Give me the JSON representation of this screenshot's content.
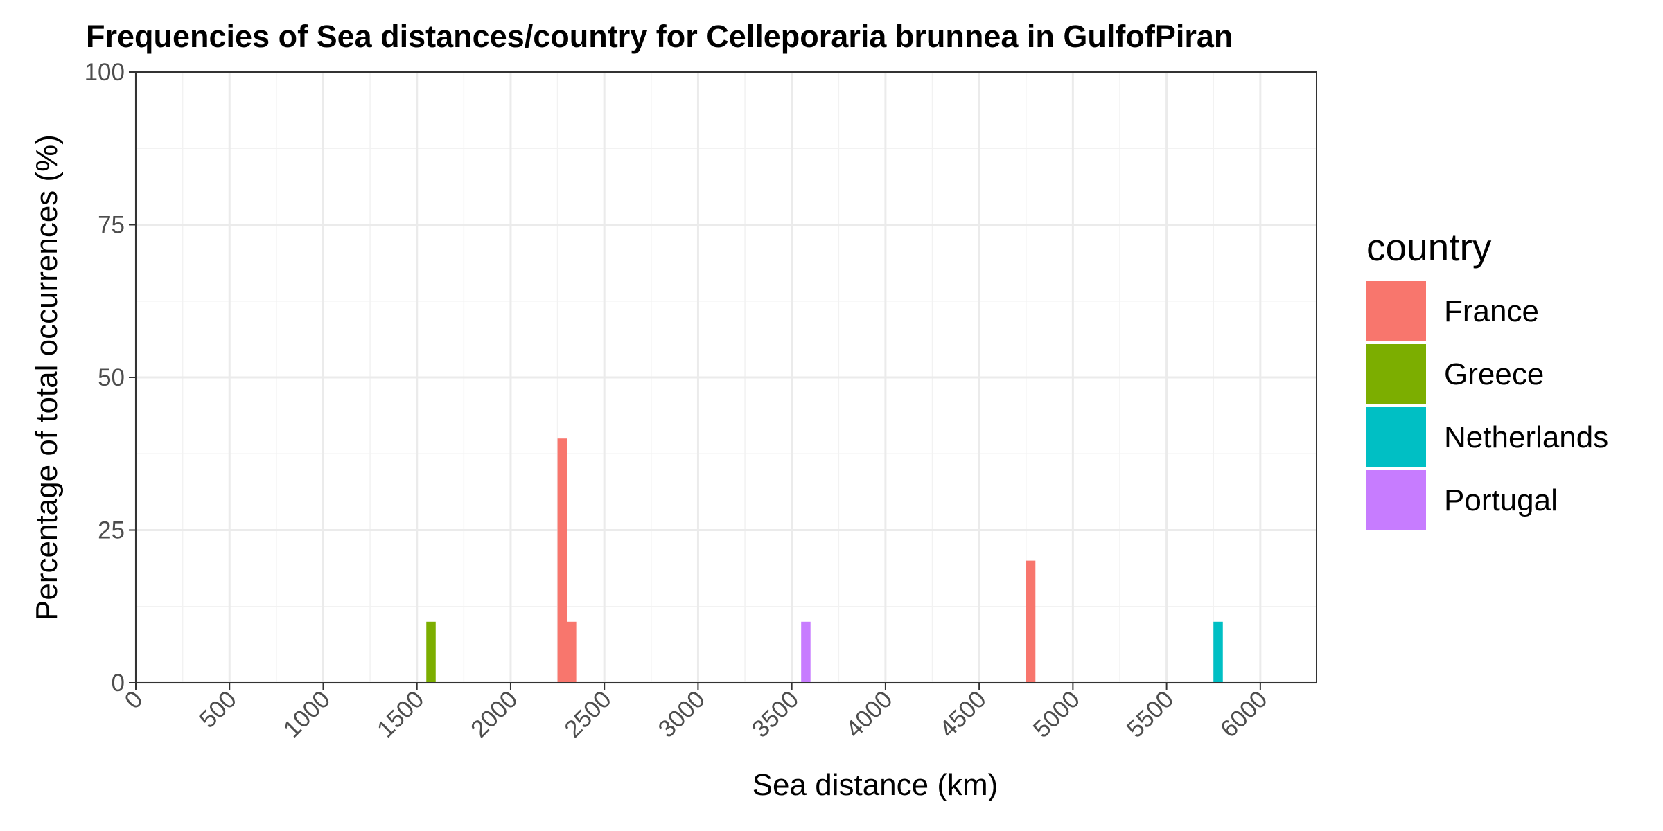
{
  "chart_data": {
    "type": "bar",
    "title": "Frequencies of Sea distances/country for Celleporaria brunnea in GulfofPiran",
    "xlabel": "Sea distance (km)",
    "ylabel": "Percentage of total occurrences (%)",
    "xlim": [
      0,
      6300
    ],
    "ylim": [
      0,
      100
    ],
    "x_ticks": [
      0,
      500,
      1000,
      1500,
      2000,
      2500,
      3000,
      3500,
      4000,
      4500,
      5000,
      5500,
      6000
    ],
    "y_ticks": [
      0,
      25,
      50,
      75,
      100
    ],
    "grid": true,
    "legend": {
      "title": "country",
      "position": "right"
    },
    "bin_width": 50,
    "series": [
      {
        "name": "France",
        "color": "#F8766D",
        "bars": [
          {
            "x": 2275,
            "value": 40
          },
          {
            "x": 2325,
            "value": 10
          },
          {
            "x": 4775,
            "value": 20
          }
        ]
      },
      {
        "name": "Greece",
        "color": "#7CAE00",
        "bars": [
          {
            "x": 1575,
            "value": 10
          }
        ]
      },
      {
        "name": "Netherlands",
        "color": "#00BFC4",
        "bars": [
          {
            "x": 5775,
            "value": 10
          }
        ]
      },
      {
        "name": "Portugal",
        "color": "#C77CFF",
        "bars": [
          {
            "x": 3575,
            "value": 10
          }
        ]
      }
    ]
  }
}
